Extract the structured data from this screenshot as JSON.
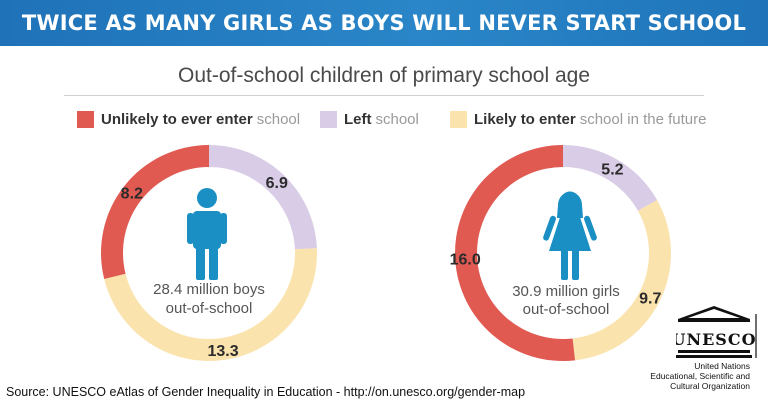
{
  "header": {
    "title": "TWICE AS MANY GIRLS AS BOYS WILL NEVER START SCHOOL"
  },
  "legend": [
    {
      "bold": "Unlikely to ever enter",
      "light": "school",
      "color": "#e05a52"
    },
    {
      "bold": "Left",
      "light": "school",
      "color": "#d9cce6"
    },
    {
      "bold": "Likely to enter",
      "light": "school in the future",
      "color": "#fbe3ae"
    }
  ],
  "chart_data": {
    "type": "donut",
    "title": "Out-of-school children of primary school age",
    "unit": "million",
    "categories": [
      "Unlikely to ever enter school",
      "Left school",
      "Likely to enter school in the future"
    ],
    "charts": [
      {
        "name": "boys",
        "total": 28.4,
        "center_line1": "28.4 million boys",
        "center_line2": "out-of-school",
        "values": {
          "unlikely": 8.2,
          "left": 6.9,
          "likely": 13.3
        },
        "labels": {
          "unlikely": "8.2",
          "left": "6.9",
          "likely": "13.3"
        }
      },
      {
        "name": "girls",
        "total": 30.9,
        "center_line1": "30.9 million girls",
        "center_line2": "out-of-school",
        "values": {
          "unlikely": 16.0,
          "left": 5.2,
          "likely": 9.7
        },
        "labels": {
          "unlikely": "16.0",
          "left": "5.2",
          "likely": "9.7"
        }
      }
    ]
  },
  "colors": {
    "unlikely": "#e05a52",
    "left": "#d9cce6",
    "likely": "#fbe3ae",
    "figure": "#1a8fc4",
    "banner": "#2a7dc0"
  },
  "footer": {
    "source": "Source: UNESCO eAtlas of Gender Inequality in Education - http://on.unesco.org/gender-map",
    "logo_text": "UNESCO",
    "org_lines": [
      "United Nations",
      "Educational, Scientific and",
      "Cultural Organization"
    ]
  }
}
